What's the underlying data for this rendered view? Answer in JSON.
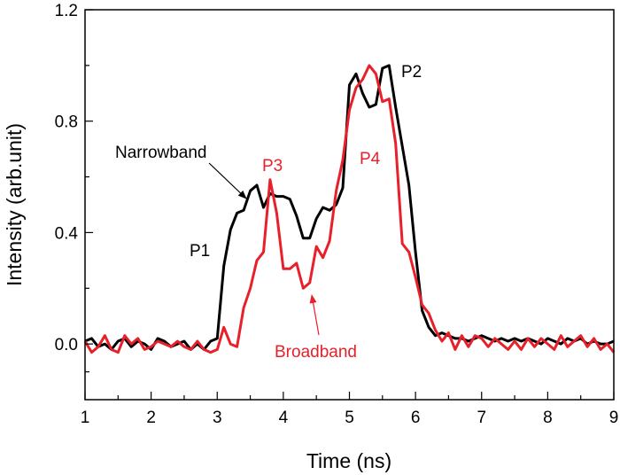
{
  "chart_data": {
    "type": "line",
    "xlabel": "Time (ns)",
    "ylabel": "Intensity (arb.unit)",
    "xlim": [
      1,
      9
    ],
    "ylim": [
      -0.2,
      1.2
    ],
    "xticks": [
      "1",
      "2",
      "3",
      "4",
      "5",
      "6",
      "7",
      "8",
      "9"
    ],
    "yticks": [
      "0.0",
      "0.4",
      "0.8",
      "1.2"
    ],
    "grid": false,
    "colors": {
      "narrowband": "#000000",
      "broadband": "#e8202a"
    },
    "series": [
      {
        "key": "narrowband",
        "x": [
          1.0,
          1.1,
          1.2,
          1.3,
          1.4,
          1.5,
          1.6,
          1.7,
          1.8,
          1.9,
          2.0,
          2.1,
          2.2,
          2.3,
          2.4,
          2.5,
          2.6,
          2.7,
          2.8,
          2.9,
          3.0,
          3.1,
          3.2,
          3.3,
          3.4,
          3.5,
          3.6,
          3.7,
          3.8,
          3.9,
          4.0,
          4.1,
          4.2,
          4.3,
          4.4,
          4.5,
          4.6,
          4.7,
          4.8,
          4.9,
          5.0,
          5.1,
          5.2,
          5.3,
          5.4,
          5.5,
          5.6,
          5.7,
          5.8,
          5.9,
          6.0,
          6.1,
          6.2,
          6.3,
          6.4,
          6.5,
          6.6,
          6.7,
          6.8,
          6.9,
          7.0,
          7.1,
          7.2,
          7.3,
          7.4,
          7.5,
          7.6,
          7.7,
          7.8,
          7.9,
          8.0,
          8.1,
          8.2,
          8.3,
          8.4,
          8.5,
          8.6,
          8.7,
          8.8,
          8.9,
          9.0
        ],
        "y": [
          0.01,
          0.02,
          -0.01,
          0.0,
          -0.02,
          0.01,
          0.02,
          -0.01,
          0.01,
          0.0,
          -0.02,
          0.02,
          0.01,
          -0.01,
          0.0,
          0.01,
          -0.02,
          0.0,
          -0.02,
          0.01,
          0.02,
          0.28,
          0.41,
          0.47,
          0.48,
          0.55,
          0.57,
          0.49,
          0.54,
          0.53,
          0.53,
          0.52,
          0.46,
          0.38,
          0.38,
          0.45,
          0.49,
          0.48,
          0.5,
          0.56,
          0.93,
          0.97,
          0.9,
          0.85,
          0.86,
          0.99,
          1.0,
          0.85,
          0.71,
          0.57,
          0.33,
          0.12,
          0.06,
          0.03,
          0.04,
          0.03,
          0.02,
          0.02,
          0.01,
          0.02,
          0.03,
          0.02,
          0.01,
          0.02,
          0.01,
          0.02,
          0.01,
          0.02,
          0.01,
          0.0,
          0.02,
          0.01,
          0.0,
          0.02,
          0.01,
          0.02,
          0.0,
          0.01,
          0.0,
          0.0,
          0.01
        ]
      },
      {
        "key": "broadband",
        "x": [
          1.0,
          1.1,
          1.2,
          1.3,
          1.4,
          1.5,
          1.6,
          1.7,
          1.8,
          1.9,
          2.0,
          2.1,
          2.2,
          2.3,
          2.4,
          2.5,
          2.6,
          2.7,
          2.8,
          2.9,
          3.0,
          3.1,
          3.2,
          3.3,
          3.4,
          3.5,
          3.6,
          3.7,
          3.8,
          3.9,
          4.0,
          4.1,
          4.2,
          4.3,
          4.4,
          4.5,
          4.6,
          4.7,
          4.8,
          4.9,
          5.0,
          5.1,
          5.2,
          5.3,
          5.4,
          5.5,
          5.6,
          5.7,
          5.8,
          5.9,
          6.0,
          6.1,
          6.2,
          6.3,
          6.4,
          6.5,
          6.6,
          6.7,
          6.8,
          6.9,
          7.0,
          7.1,
          7.2,
          7.3,
          7.4,
          7.5,
          7.6,
          7.7,
          7.8,
          7.9,
          8.0,
          8.1,
          8.2,
          8.3,
          8.4,
          8.5,
          8.6,
          8.7,
          8.8,
          8.9,
          9.0
        ],
        "y": [
          0.01,
          -0.03,
          -0.01,
          0.03,
          -0.02,
          -0.03,
          0.03,
          0.0,
          0.02,
          -0.02,
          -0.01,
          0.01,
          0.0,
          -0.01,
          0.01,
          -0.01,
          -0.02,
          0.01,
          -0.02,
          -0.03,
          -0.02,
          0.06,
          0.0,
          -0.01,
          0.13,
          0.2,
          0.3,
          0.33,
          0.59,
          0.47,
          0.27,
          0.27,
          0.29,
          0.2,
          0.22,
          0.35,
          0.31,
          0.37,
          0.55,
          0.66,
          0.84,
          0.92,
          0.95,
          1.0,
          0.97,
          0.87,
          0.88,
          0.72,
          0.36,
          0.33,
          0.24,
          0.14,
          0.11,
          0.05,
          0.01,
          0.04,
          -0.02,
          0.03,
          -0.01,
          0.03,
          0.02,
          -0.01,
          0.02,
          0.0,
          -0.02,
          0.01,
          -0.02,
          0.02,
          -0.01,
          0.02,
          0.0,
          -0.02,
          0.03,
          -0.01,
          0.01,
          0.03,
          -0.01,
          0.02,
          -0.02,
          0.0,
          -0.03
        ]
      }
    ],
    "annotations": [
      {
        "key": "P1",
        "text": "P1",
        "color": "#000000"
      },
      {
        "key": "P2",
        "text": "P2",
        "color": "#000000"
      },
      {
        "key": "P3",
        "text": "P3",
        "color": "#e8202a"
      },
      {
        "key": "P4",
        "text": "P4",
        "color": "#e8202a"
      },
      {
        "key": "narrowband",
        "text": "Narrowband",
        "color": "#000000"
      },
      {
        "key": "broadband",
        "text": "Broadband",
        "color": "#e8202a"
      }
    ]
  }
}
